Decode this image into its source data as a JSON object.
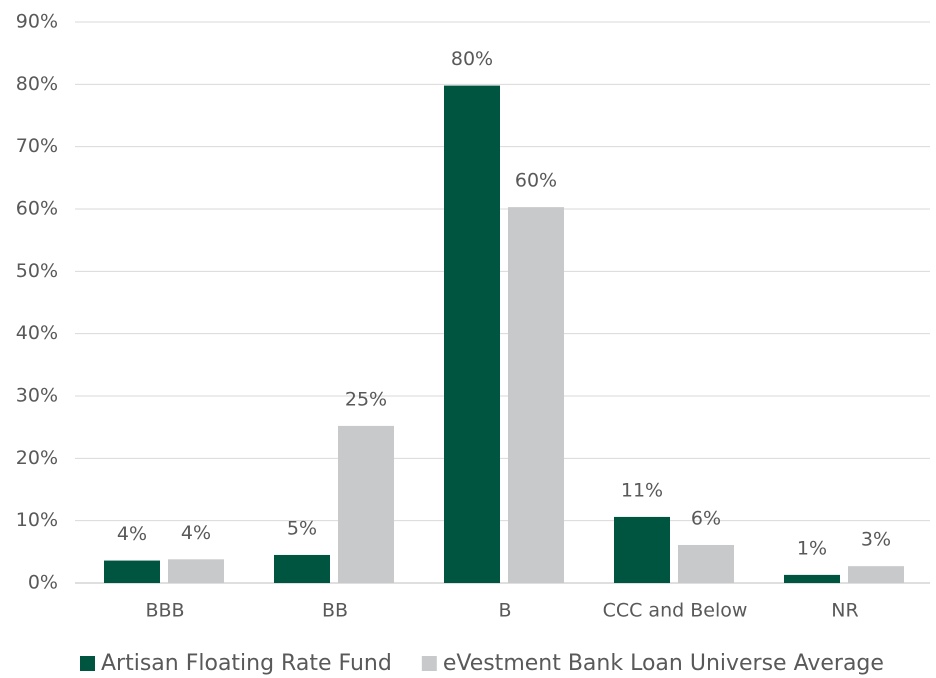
{
  "chart_data": {
    "type": "bar",
    "categories": [
      "BBB",
      "BB",
      "B",
      "CCC and Below",
      "NR"
    ],
    "series": [
      {
        "name": "Artisan Floating Rate Fund",
        "color": "#005541",
        "values": [
          3.6,
          4.5,
          79.8,
          10.6,
          1.3
        ],
        "value_labels": [
          "4%",
          "5%",
          "80%",
          "11%",
          "1%"
        ]
      },
      {
        "name": "eVestment Bank Loan Universe Average",
        "color": "#c8c9ca",
        "values": [
          3.8,
          25.2,
          60.3,
          6.1,
          2.7
        ],
        "value_labels": [
          "4%",
          "25%",
          "60%",
          "6%",
          "3%"
        ]
      }
    ],
    "ylim": [
      0,
      90
    ],
    "yticks": [
      {
        "value": 0,
        "label": "0%"
      },
      {
        "value": 10,
        "label": "10%"
      },
      {
        "value": 20,
        "label": "20%"
      },
      {
        "value": 30,
        "label": "30%"
      },
      {
        "value": 40,
        "label": "40%"
      },
      {
        "value": 50,
        "label": "50%"
      },
      {
        "value": 60,
        "label": "60%"
      },
      {
        "value": 70,
        "label": "70%"
      },
      {
        "value": 80,
        "label": "80%"
      },
      {
        "value": 90,
        "label": "90%"
      }
    ],
    "grid": true,
    "legend": "bottom"
  }
}
